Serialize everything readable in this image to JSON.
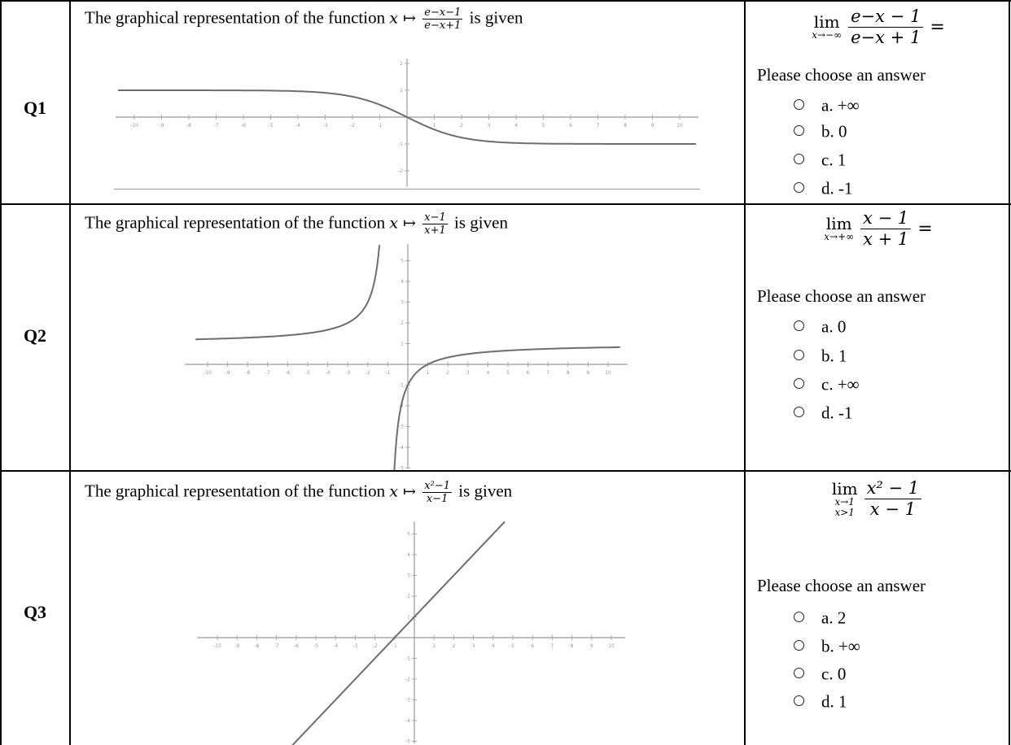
{
  "caption_prefix": "The graphical representation of the function",
  "caption_suffix": "is given",
  "prompt_text": "Please choose an answer",
  "questions": [
    {
      "label": "Q1",
      "func_num": "e−x−1",
      "func_den": "e−x+1",
      "lim_sub": "x→−∞",
      "lim_sub2": "",
      "lim_num": "e−x − 1",
      "lim_den": "e−x + 1",
      "lim_eq": "=",
      "options": [
        {
          "letter": "a.",
          "value": "+∞"
        },
        {
          "letter": "b.",
          "value": "0"
        },
        {
          "letter": "c.",
          "value": "1"
        },
        {
          "letter": "d.",
          "value": "-1"
        }
      ]
    },
    {
      "label": "Q2",
      "func_num": "x−1",
      "func_den": "x+1",
      "lim_sub": "x→+∞",
      "lim_sub2": "",
      "lim_num": "x − 1",
      "lim_den": "x + 1",
      "lim_eq": "=",
      "options": [
        {
          "letter": "a.",
          "value": "0"
        },
        {
          "letter": "b.",
          "value": "1"
        },
        {
          "letter": "c.",
          "value": "+∞"
        },
        {
          "letter": "d.",
          "value": "-1"
        }
      ]
    },
    {
      "label": "Q3",
      "func_num": "x²−1",
      "func_den": "x−1",
      "lim_sub": "x→1",
      "lim_sub2": "x>1",
      "lim_num": "x² − 1",
      "lim_den": "x − 1",
      "lim_eq": "",
      "options": [
        {
          "letter": "a.",
          "value": "2"
        },
        {
          "letter": "b.",
          "value": "+∞"
        },
        {
          "letter": "c.",
          "value": "0"
        },
        {
          "letter": "d.",
          "value": "1"
        }
      ]
    }
  ],
  "plots": [
    {
      "func": "-tanh(x/2)",
      "xlim": [
        -10,
        10
      ],
      "yticks": [
        -2,
        -1,
        1,
        2
      ]
    },
    {
      "func": "(x-1)/(x+1)",
      "xlim": [
        -10,
        10
      ],
      "yticks": [
        -5,
        -4,
        -3,
        -2,
        -1,
        1,
        2,
        3,
        4,
        5
      ]
    },
    {
      "func": "x+1",
      "xlim": [
        -10,
        10
      ],
      "yticks": [
        -5,
        -4,
        -3,
        -2,
        -1,
        1,
        2,
        3,
        4,
        5
      ]
    }
  ]
}
